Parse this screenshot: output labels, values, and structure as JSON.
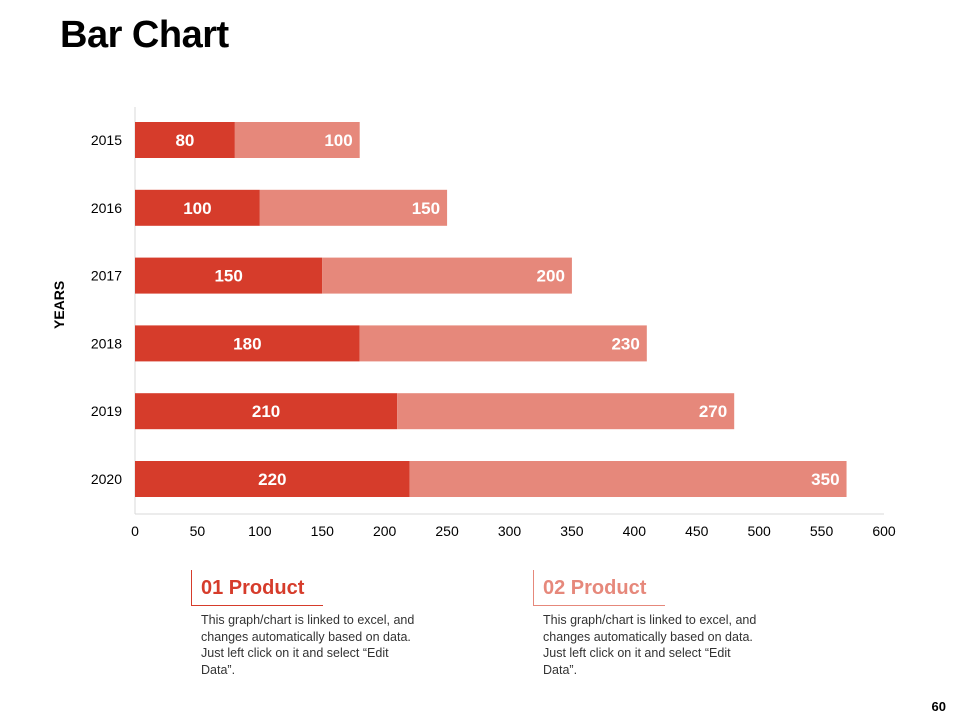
{
  "slide": {
    "title": "Bar Chart",
    "page_number": "60"
  },
  "legend": [
    {
      "heading": "01 Product",
      "description": "This graph/chart is linked to excel, and changes automatically based on data. Just left click on it and select “Edit Data”.",
      "color": "#d63c2b"
    },
    {
      "heading": "02 Product",
      "description": "This graph/chart is linked to excel, and changes automatically based on data. Just left click on it and select “Edit Data”.",
      "color": "#e6887b"
    }
  ],
  "chart_data": {
    "type": "bar",
    "orientation": "horizontal",
    "stacked": true,
    "title": "Bar Chart",
    "xlabel": "",
    "ylabel": "YEARS",
    "categories": [
      "2015",
      "2016",
      "2017",
      "2018",
      "2019",
      "2020"
    ],
    "series": [
      {
        "name": "01 Product",
        "values": [
          80,
          100,
          150,
          180,
          210,
          220
        ],
        "color": "#d63c2b"
      },
      {
        "name": "02 Product",
        "values": [
          100,
          150,
          200,
          230,
          270,
          350
        ],
        "color": "#e6887b"
      }
    ],
    "xlim": [
      0,
      600
    ],
    "xticks": [
      0,
      50,
      100,
      150,
      200,
      250,
      300,
      350,
      400,
      450,
      500,
      550,
      600
    ],
    "grid": false
  }
}
